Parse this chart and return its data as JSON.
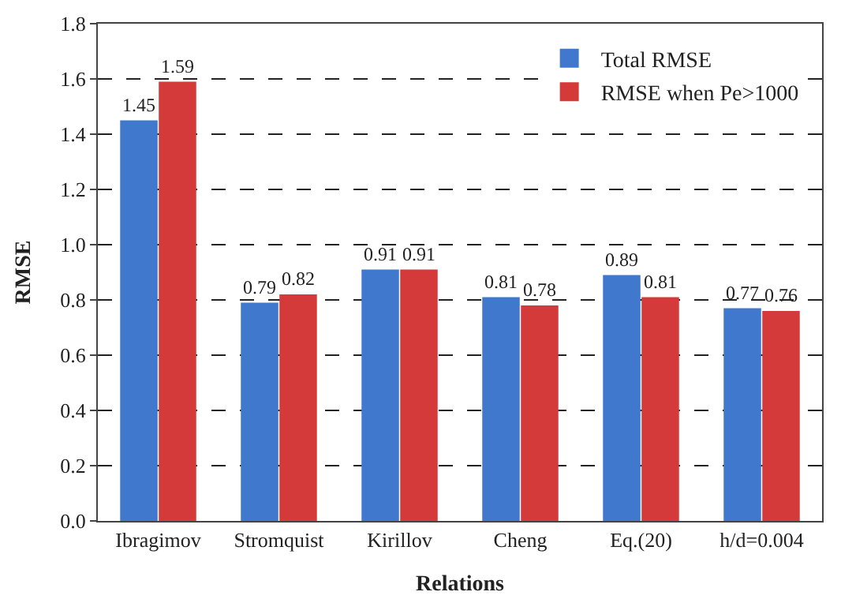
{
  "chart_data": {
    "type": "bar",
    "xlabel": "Relations",
    "ylabel": "RMSE",
    "categories": [
      "Ibragimov",
      "Stromquist",
      "Kirillov",
      "Cheng",
      "Eq.(20)",
      "h/d=0.004"
    ],
    "series": [
      {
        "name": "Total RMSE",
        "color": "#3f78cc",
        "values": [
          1.45,
          0.79,
          0.91,
          0.81,
          0.89,
          0.77
        ]
      },
      {
        "name": "RMSE when Pe>1000",
        "color": "#d43a3a",
        "values": [
          1.59,
          0.82,
          0.91,
          0.78,
          0.81,
          0.76
        ]
      }
    ],
    "ylim": [
      0,
      1.8
    ],
    "yticks": [
      {
        "value": 0,
        "label": "0.0"
      },
      0.2,
      0.4,
      0.6,
      0.8,
      {
        "value": 1,
        "label": "1.0"
      },
      1.2,
      1.4,
      1.6,
      1.8
    ],
    "grid": "y",
    "legend": "top right",
    "data_labels": true
  }
}
